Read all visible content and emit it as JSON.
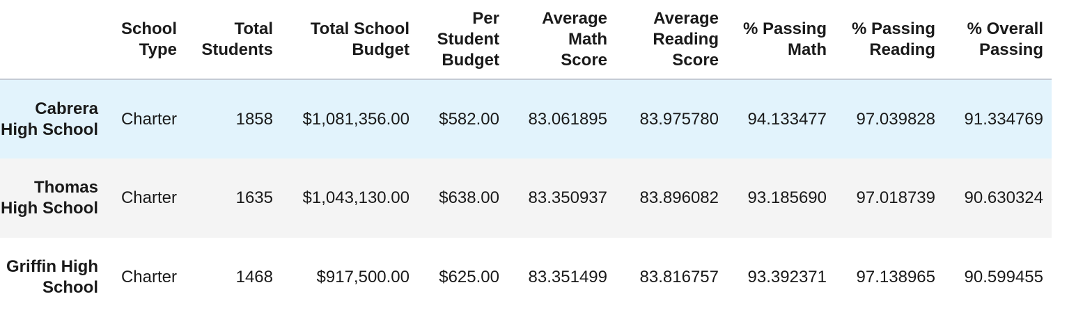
{
  "table": {
    "columns": [
      "",
      "School Type",
      "Total Students",
      "Total School Budget",
      "Per Student Budget",
      "Average Math Score",
      "Average Reading Score",
      "% Passing Math",
      "% Passing Reading",
      "% Overall Passing"
    ],
    "rows": [
      {
        "name": "Cabrera High School",
        "school_type": "Charter",
        "total_students": "1858",
        "total_budget": "$1,081,356.00",
        "per_student_budget": "$582.00",
        "avg_math": "83.061895",
        "avg_reading": "83.975780",
        "pct_math": "94.133477",
        "pct_reading": "97.039828",
        "pct_overall": "91.334769"
      },
      {
        "name": "Thomas High School",
        "school_type": "Charter",
        "total_students": "1635",
        "total_budget": "$1,043,130.00",
        "per_student_budget": "$638.00",
        "avg_math": "83.350937",
        "avg_reading": "83.896082",
        "pct_math": "93.185690",
        "pct_reading": "97.018739",
        "pct_overall": "90.630324"
      },
      {
        "name": "Griffin High School",
        "school_type": "Charter",
        "total_students": "1468",
        "total_budget": "$917,500.00",
        "per_student_budget": "$625.00",
        "avg_math": "83.351499",
        "avg_reading": "83.816757",
        "pct_math": "93.392371",
        "pct_reading": "97.138965",
        "pct_overall": "90.599455"
      }
    ]
  },
  "colors": {
    "hover_row": "#e2f3fc",
    "striped_row": "#f4f4f4",
    "header_rule": "#c4cbd4"
  }
}
